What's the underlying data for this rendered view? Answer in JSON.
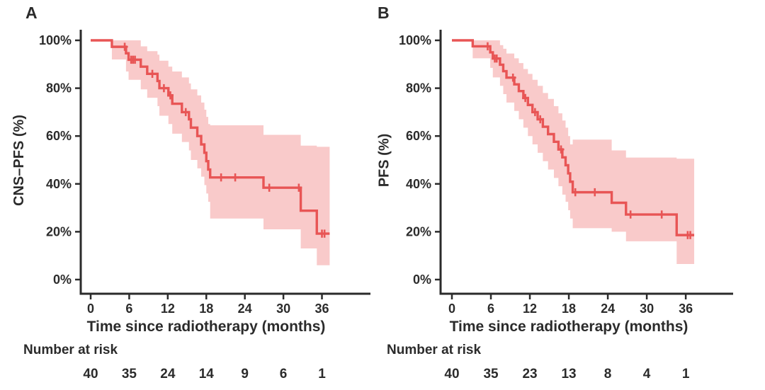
{
  "figure": {
    "risk_label": "Number at risk",
    "colors": {
      "line": "#e85555",
      "band": "#f9caca",
      "axis": "#2b2b2b",
      "text": "#2b2b2b",
      "background": "#ffffff"
    }
  },
  "chart_data": [
    {
      "type": "line",
      "subtype": "kaplan-meier-step-curve-with-confidence-band",
      "panel_label": "A",
      "ylabel": "CNS–PFS (%)",
      "xlabel": "Time since radiotherapy (months)",
      "xlim": [
        0,
        40
      ],
      "xticks": [
        0,
        6,
        12,
        18,
        24,
        30,
        36
      ],
      "ylim": [
        0,
        100
      ],
      "yticks": [
        0,
        20,
        40,
        60,
        80,
        100
      ],
      "ytick_suffix": "%",
      "grid": false,
      "legend": "none",
      "end_t": 37.2,
      "steps_t_pct_lo_hi": [
        [
          0,
          100,
          100,
          100
        ],
        [
          3.3,
          97.3,
          92.0,
          100
        ],
        [
          5.5,
          94.6,
          87.0,
          100
        ],
        [
          5.9,
          91.9,
          83.5,
          100
        ],
        [
          7.8,
          89.0,
          79.5,
          97.5
        ],
        [
          8.8,
          86.0,
          76.0,
          95.5
        ],
        [
          10.4,
          83.0,
          72.5,
          94.0
        ],
        [
          10.7,
          80.0,
          68.5,
          91.5
        ],
        [
          12.1,
          77.0,
          65.0,
          89.0
        ],
        [
          12.7,
          73.5,
          61.0,
          87.0
        ],
        [
          14.2,
          70.0,
          57.5,
          84.5
        ],
        [
          15.3,
          67.0,
          54.0,
          82.0
        ],
        [
          15.6,
          63.5,
          50.0,
          79.5
        ],
        [
          16.6,
          60.0,
          46.5,
          77.0
        ],
        [
          17.2,
          56.5,
          43.0,
          74.0
        ],
        [
          17.7,
          53.0,
          39.5,
          71.0
        ],
        [
          18.0,
          49.5,
          36.0,
          68.0
        ],
        [
          18.3,
          46.0,
          32.5,
          65.0
        ],
        [
          18.6,
          42.7,
          25.5,
          64.5
        ],
        [
          26.9,
          38.4,
          21.0,
          60.5
        ],
        [
          32.7,
          28.8,
          13.0,
          56.0
        ],
        [
          35.2,
          19.2,
          6.0,
          55.5
        ]
      ],
      "censors_t_pct": [
        [
          5.3,
          97.3
        ],
        [
          6.3,
          91.9
        ],
        [
          6.6,
          91.9
        ],
        [
          6.9,
          91.9
        ],
        [
          9.6,
          86.0
        ],
        [
          11.4,
          80.0
        ],
        [
          12.4,
          77.0
        ],
        [
          14.8,
          70.0
        ],
        [
          20.3,
          42.7
        ],
        [
          22.5,
          42.7
        ],
        [
          27.8,
          38.4
        ],
        [
          32.4,
          38.4
        ],
        [
          36.0,
          19.2
        ],
        [
          36.4,
          19.2
        ]
      ],
      "number_at_risk": {
        "times": [
          0,
          6,
          12,
          18,
          24,
          30,
          36
        ],
        "counts": [
          40,
          35,
          24,
          14,
          9,
          6,
          1
        ]
      }
    },
    {
      "type": "line",
      "subtype": "kaplan-meier-step-curve-with-confidence-band",
      "panel_label": "B",
      "ylabel": "PFS (%)",
      "xlabel": "Time since radiotherapy (months)",
      "xlim": [
        0,
        40
      ],
      "xticks": [
        0,
        6,
        12,
        18,
        24,
        30,
        36
      ],
      "ylim": [
        0,
        100
      ],
      "yticks": [
        0,
        20,
        40,
        60,
        80,
        100
      ],
      "ytick_suffix": "%",
      "grid": false,
      "legend": "none",
      "end_t": 37.3,
      "steps_t_pct_lo_hi": [
        [
          0,
          100,
          100,
          100
        ],
        [
          3.2,
          97.5,
          92.5,
          100
        ],
        [
          5.9,
          95.0,
          88.5,
          100
        ],
        [
          6.3,
          92.4,
          84.5,
          100
        ],
        [
          7.4,
          89.8,
          81.0,
          98.0
        ],
        [
          7.9,
          87.1,
          77.5,
          96.5
        ],
        [
          8.4,
          84.4,
          74.0,
          94.5
        ],
        [
          9.6,
          81.6,
          70.5,
          92.5
        ],
        [
          10.3,
          78.8,
          67.0,
          90.5
        ],
        [
          11.0,
          75.9,
          63.5,
          88.0
        ],
        [
          11.7,
          73.0,
          60.0,
          86.0
        ],
        [
          12.4,
          70.0,
          56.5,
          83.5
        ],
        [
          13.2,
          67.0,
          53.0,
          81.0
        ],
        [
          14.0,
          63.9,
          49.5,
          78.0
        ],
        [
          14.8,
          60.8,
          46.0,
          75.5
        ],
        [
          15.7,
          57.6,
          42.5,
          72.5
        ],
        [
          16.4,
          54.4,
          39.0,
          69.5
        ],
        [
          17.0,
          51.1,
          35.5,
          66.5
        ],
        [
          17.5,
          47.8,
          32.5,
          63.5
        ],
        [
          17.9,
          44.4,
          29.0,
          60.0
        ],
        [
          18.2,
          40.9,
          25.5,
          56.5
        ],
        [
          18.6,
          36.5,
          21.5,
          58.5
        ],
        [
          24.6,
          32.1,
          20.0,
          54.0
        ],
        [
          26.8,
          27.2,
          16.0,
          51.0
        ],
        [
          34.6,
          18.6,
          6.5,
          50.5
        ]
      ],
      "censors_t_pct": [
        [
          5.5,
          97.5
        ],
        [
          6.6,
          92.4
        ],
        [
          6.9,
          92.4
        ],
        [
          9.4,
          84.4
        ],
        [
          11.3,
          75.9
        ],
        [
          12.8,
          70.0
        ],
        [
          13.6,
          67.0
        ],
        [
          16.8,
          54.4
        ],
        [
          19.0,
          36.5
        ],
        [
          22.0,
          36.5
        ],
        [
          27.5,
          27.2
        ],
        [
          32.3,
          27.2
        ],
        [
          36.3,
          18.6
        ],
        [
          36.7,
          18.6
        ]
      ],
      "number_at_risk": {
        "times": [
          0,
          6,
          12,
          18,
          24,
          30,
          36
        ],
        "counts": [
          40,
          35,
          23,
          13,
          8,
          4,
          1
        ]
      }
    }
  ]
}
